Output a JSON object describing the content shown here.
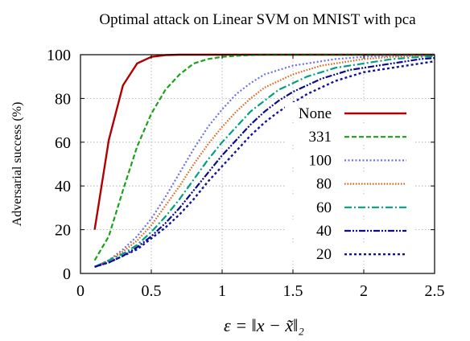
{
  "chart_data": {
    "type": "line",
    "title": "Optimal attack on Linear SVM on MNIST with pca",
    "xlabel": "ε = ‖x − x̃‖₂",
    "ylabel": "Adversarial success (%)",
    "xlim": [
      0,
      2.5
    ],
    "ylim": [
      0,
      100
    ],
    "x_ticks": [
      "0",
      "0.5",
      "1",
      "1.5",
      "2",
      "2.5"
    ],
    "y_ticks": [
      "0",
      "20",
      "40",
      "60",
      "80",
      "100"
    ],
    "grid": true,
    "legend_position": "right",
    "x": [
      0.1,
      0.2,
      0.3,
      0.4,
      0.5,
      0.6,
      0.7,
      0.8,
      0.9,
      1.0,
      1.1,
      1.2,
      1.3,
      1.4,
      1.5,
      1.6,
      1.7,
      1.8,
      1.9,
      2.0,
      2.1,
      2.2,
      2.3,
      2.4,
      2.5
    ],
    "series": [
      {
        "name": "None",
        "color": "#b00000",
        "dash": "solid",
        "width": 2.4,
        "values": [
          20,
          61,
          86,
          96,
          99,
          99.8,
          100,
          100,
          100,
          100,
          100,
          100,
          100,
          100,
          100,
          100,
          100,
          100,
          100,
          100,
          100,
          100,
          100,
          100,
          100
        ]
      },
      {
        "name": "331",
        "color": "#1aa31a",
        "dash": "6,3",
        "width": 2.2,
        "values": [
          6,
          17,
          38,
          58,
          73,
          84,
          91,
          96,
          98,
          99,
          99.5,
          99.8,
          100,
          100,
          100,
          100,
          100,
          100,
          100,
          100,
          100,
          100,
          100,
          100,
          100
        ]
      },
      {
        "name": "100",
        "color": "#7070e0",
        "dash": "2,2.5",
        "width": 2.2,
        "values": [
          3,
          6,
          11,
          17,
          25,
          35,
          46,
          57,
          67,
          75,
          82,
          87,
          91,
          93,
          95,
          96,
          97,
          98,
          98.5,
          99,
          99.3,
          99.5,
          99.7,
          99.8,
          99.9
        ]
      },
      {
        "name": "80",
        "color": "#e06010",
        "dash": "1.5,2",
        "width": 2.2,
        "values": [
          3,
          6,
          10,
          15,
          22,
          31,
          40,
          50,
          59,
          67,
          74,
          80,
          85,
          88,
          91,
          93,
          95,
          96,
          97,
          98,
          98.5,
          99,
          99.3,
          99.5,
          99.7
        ]
      },
      {
        "name": "60",
        "color": "#00a080",
        "dash": "9,3,2,3",
        "width": 2.2,
        "values": [
          3,
          6,
          9,
          13,
          19,
          26,
          34,
          43,
          52,
          60,
          67,
          74,
          79,
          84,
          87,
          90,
          92,
          94,
          95,
          96,
          97,
          98,
          98.5,
          99,
          99.3
        ]
      },
      {
        "name": "40",
        "color": "#0a0a8a",
        "dash": "8,2,2,2,2,2",
        "width": 2.2,
        "values": [
          3,
          5,
          8,
          12,
          17,
          23,
          30,
          38,
          46,
          54,
          61,
          68,
          74,
          79,
          83,
          86,
          89,
          91,
          93,
          94,
          95,
          96,
          97,
          98,
          98.5
        ]
      },
      {
        "name": "20",
        "color": "#10109a",
        "dash": "3,3",
        "width": 2.4,
        "values": [
          3,
          5,
          8,
          11,
          16,
          21,
          27,
          34,
          42,
          49,
          56,
          63,
          69,
          74,
          78,
          82,
          85,
          88,
          90,
          92,
          93,
          94,
          95,
          96,
          97
        ]
      }
    ]
  }
}
